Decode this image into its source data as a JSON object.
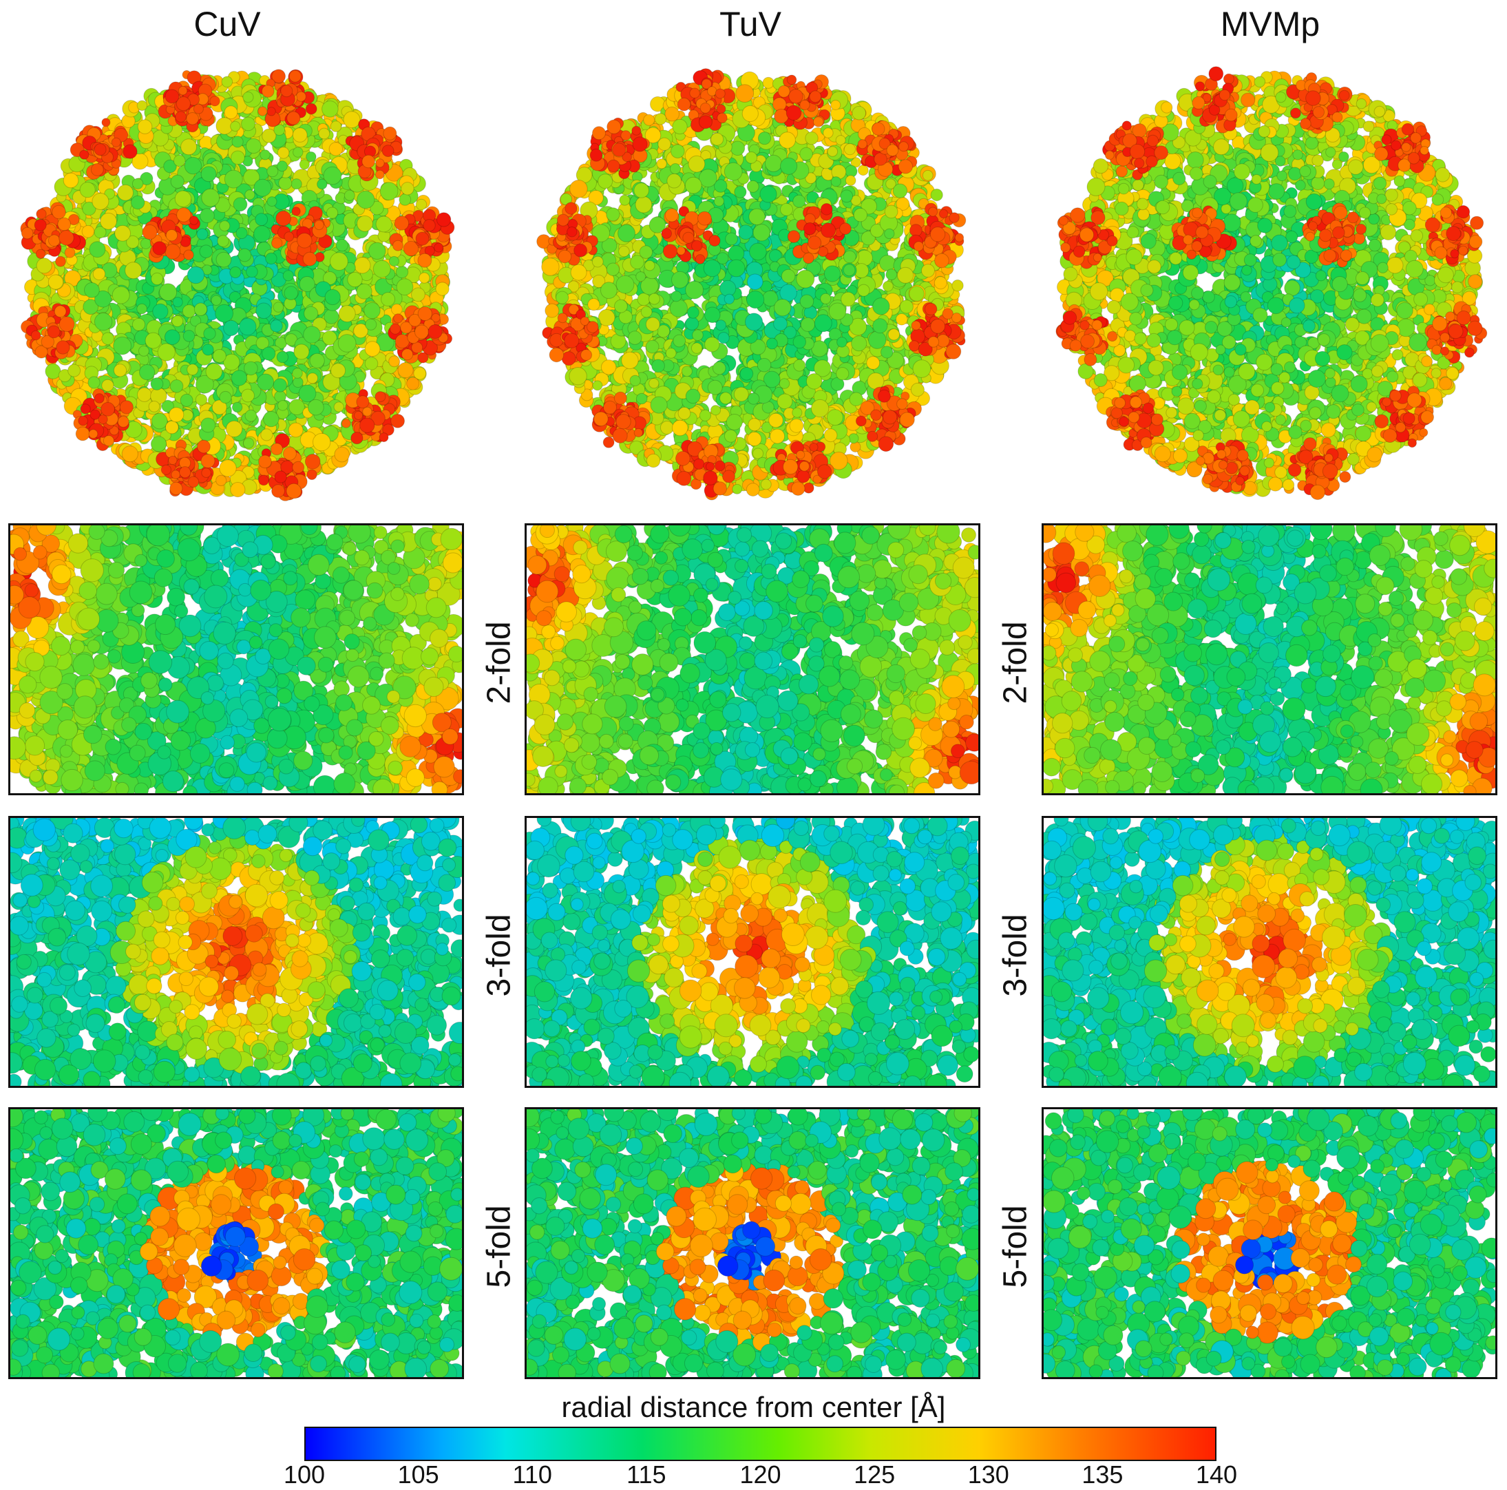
{
  "columns": [
    "CuV",
    "TuV",
    "MVMp"
  ],
  "folds": [
    "2-fold",
    "3-fold",
    "5-fold"
  ],
  "colorbar": {
    "label": "radial distance from center [Å]",
    "ticks": [
      "100",
      "105",
      "110",
      "115",
      "120",
      "125",
      "130",
      "135",
      "140"
    ],
    "tick_values": [
      100,
      105,
      110,
      115,
      120,
      125,
      130,
      135,
      140
    ],
    "range": [
      100,
      140
    ],
    "colors": [
      "#0000ff",
      "#00e5e5",
      "#00dd66",
      "#ffd000",
      "#ff2000"
    ]
  }
}
